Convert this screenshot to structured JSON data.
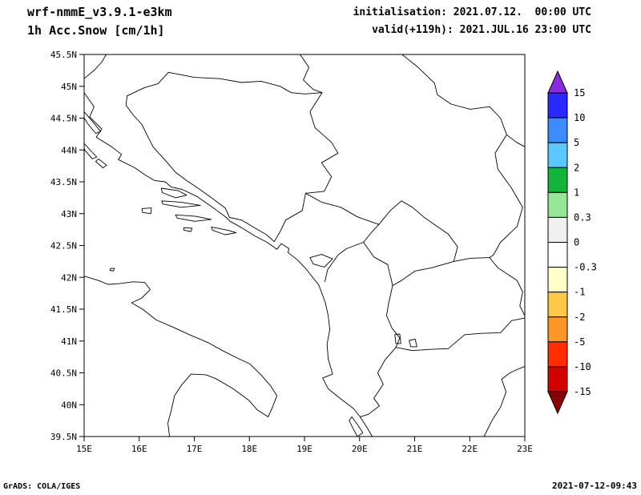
{
  "header": {
    "model_line": "wrf-nmmE_v3.9.1-e3km",
    "field_line": "1h Acc.Snow [cm/1h]",
    "init_line": "initialisation: 2021.07.12.  00:00 UTC",
    "valid_line": "valid(+119h): 2021.JUL.16 23:00 UTC"
  },
  "footer": {
    "grads_credit": "GrADS: COLA/IGES",
    "timestamp": "2021-07-12-09:43"
  },
  "chart_data": {
    "type": "map",
    "title": "1h Acc.Snow [cm/1h]",
    "model": "wrf-nmmE_v3.9.1-e3km",
    "initialisation": "2021.07.12. 00:00 UTC",
    "valid": "2021.JUL.16 23:00 UTC (+119h)",
    "lon_range": [
      15,
      23
    ],
    "lat_range": [
      39.5,
      45.5
    ],
    "x_ticks": [
      "15E",
      "16E",
      "17E",
      "18E",
      "19E",
      "20E",
      "21E",
      "22E",
      "23E"
    ],
    "y_ticks": [
      "45.5N",
      "45N",
      "44.5N",
      "44N",
      "43.5N",
      "43N",
      "42.5N",
      "42N",
      "41.5N",
      "41N",
      "40.5N",
      "40N",
      "39.5N"
    ],
    "grid": false,
    "field_note": "no shaded/contoured snow values visible inside map domain (field zero everywhere)",
    "colorbar": {
      "units": "cm/1h",
      "labels": [
        "15",
        "10",
        "5",
        "2",
        "1",
        "0.3",
        "0",
        "-0.3",
        "-1",
        "-2",
        "-5",
        "-10",
        "-15"
      ],
      "colors": [
        "#8a2be2",
        "#2828ff",
        "#3c8cff",
        "#5ac8ff",
        "#12b43c",
        "#96e696",
        "#f0f0f0",
        "#ffffff",
        "#ffffc8",
        "#ffc846",
        "#ff9628",
        "#ff2d00",
        "#d20000",
        "#8c0000"
      ]
    }
  },
  "map_features": {
    "coastlines": [
      [
        [
          15.0,
          44.9
        ],
        [
          15.18,
          44.68
        ],
        [
          15.1,
          44.52
        ],
        [
          15.32,
          44.33
        ],
        [
          15.22,
          44.2
        ],
        [
          15.5,
          44.05
        ],
        [
          15.68,
          43.93
        ],
        [
          15.62,
          43.85
        ],
        [
          15.92,
          43.72
        ],
        [
          16.12,
          43.6
        ],
        [
          16.28,
          43.52
        ],
        [
          16.47,
          43.5
        ],
        [
          16.58,
          43.42
        ],
        [
          16.78,
          43.38
        ],
        [
          17.05,
          43.27
        ],
        [
          17.38,
          43.07
        ],
        [
          17.58,
          42.94
        ],
        [
          17.65,
          42.88
        ],
        [
          17.82,
          42.8
        ],
        [
          18.1,
          42.65
        ],
        [
          18.32,
          42.55
        ],
        [
          18.5,
          42.44
        ],
        [
          18.58,
          42.53
        ],
        [
          18.72,
          42.45
        ],
        [
          18.7,
          42.39
        ],
        [
          18.88,
          42.27
        ],
        [
          19.03,
          42.13
        ],
        [
          19.12,
          42.03
        ],
        [
          19.26,
          41.88
        ],
        [
          19.38,
          41.6
        ],
        [
          19.43,
          41.4
        ],
        [
          19.46,
          41.18
        ],
        [
          19.41,
          40.95
        ],
        [
          19.43,
          40.72
        ],
        [
          19.51,
          40.48
        ],
        [
          19.33,
          40.42
        ],
        [
          19.43,
          40.25
        ],
        [
          19.66,
          40.09
        ],
        [
          19.89,
          39.94
        ],
        [
          20.01,
          39.81
        ],
        [
          20.13,
          39.65
        ],
        [
          20.23,
          39.5
        ]
      ],
      [
        [
          15.0,
          42.02
        ],
        [
          15.26,
          41.95
        ],
        [
          15.43,
          41.89
        ],
        [
          15.63,
          41.9
        ],
        [
          15.89,
          41.93
        ],
        [
          16.1,
          41.92
        ],
        [
          16.2,
          41.81
        ],
        [
          16.04,
          41.67
        ],
        [
          15.86,
          41.6
        ],
        [
          16.06,
          41.5
        ],
        [
          16.31,
          41.33
        ],
        [
          16.61,
          41.22
        ],
        [
          16.91,
          41.1
        ],
        [
          17.26,
          40.97
        ],
        [
          17.51,
          40.85
        ],
        [
          17.81,
          40.72
        ],
        [
          18.01,
          40.64
        ],
        [
          18.21,
          40.47
        ],
        [
          18.39,
          40.29
        ],
        [
          18.5,
          40.14
        ],
        [
          18.41,
          39.94
        ],
        [
          18.34,
          39.81
        ],
        [
          18.14,
          39.92
        ],
        [
          17.99,
          40.07
        ],
        [
          17.69,
          40.26
        ],
        [
          17.39,
          40.41
        ],
        [
          17.21,
          40.47
        ],
        [
          16.94,
          40.48
        ],
        [
          16.77,
          40.31
        ],
        [
          16.64,
          40.14
        ],
        [
          16.59,
          39.94
        ],
        [
          16.52,
          39.71
        ],
        [
          16.55,
          39.5
        ]
      ],
      [
        [
          22.26,
          39.5
        ],
        [
          22.41,
          39.76
        ],
        [
          22.56,
          39.96
        ],
        [
          22.66,
          40.2
        ],
        [
          22.58,
          40.4
        ],
        [
          22.73,
          40.5
        ],
        [
          22.91,
          40.57
        ],
        [
          23.0,
          40.6
        ]
      ]
    ],
    "borders": [
      [
        [
          15.0,
          45.12
        ],
        [
          15.18,
          45.25
        ],
        [
          15.32,
          45.38
        ],
        [
          15.4,
          45.5
        ]
      ],
      [
        [
          16.53,
          45.22
        ],
        [
          16.34,
          45.04
        ],
        [
          16.1,
          44.98
        ],
        [
          15.78,
          44.85
        ],
        [
          15.76,
          44.7
        ],
        [
          15.89,
          44.55
        ],
        [
          16.05,
          44.4
        ],
        [
          16.16,
          44.2
        ],
        [
          16.26,
          44.04
        ],
        [
          16.46,
          43.85
        ],
        [
          16.66,
          43.65
        ],
        [
          16.86,
          43.52
        ],
        [
          17.1,
          43.38
        ],
        [
          17.31,
          43.25
        ],
        [
          17.56,
          43.09
        ],
        [
          17.64,
          42.94
        ],
        [
          17.86,
          42.9
        ],
        [
          18.11,
          42.77
        ],
        [
          18.31,
          42.67
        ],
        [
          18.45,
          42.56
        ]
      ],
      [
        [
          16.53,
          45.22
        ],
        [
          17.0,
          45.14
        ],
        [
          17.46,
          45.12
        ],
        [
          17.86,
          45.06
        ],
        [
          18.21,
          45.08
        ],
        [
          18.56,
          45.0
        ],
        [
          18.76,
          44.9
        ],
        [
          19.01,
          44.88
        ],
        [
          19.32,
          44.9
        ]
      ],
      [
        [
          18.92,
          45.5
        ],
        [
          19.08,
          45.3
        ],
        [
          18.98,
          45.1
        ],
        [
          19.16,
          44.95
        ],
        [
          19.32,
          44.9
        ]
      ],
      [
        [
          19.32,
          44.9
        ],
        [
          19.1,
          44.6
        ],
        [
          19.19,
          44.35
        ],
        [
          19.49,
          44.12
        ],
        [
          19.61,
          43.95
        ],
        [
          19.31,
          43.8
        ],
        [
          19.49,
          43.58
        ],
        [
          19.36,
          43.35
        ],
        [
          19.02,
          43.32
        ]
      ],
      [
        [
          18.45,
          42.56
        ],
        [
          18.56,
          42.72
        ],
        [
          18.66,
          42.9
        ],
        [
          18.96,
          43.05
        ],
        [
          19.02,
          43.32
        ]
      ],
      [
        [
          19.02,
          43.32
        ],
        [
          19.31,
          43.18
        ],
        [
          19.66,
          43.1
        ],
        [
          19.96,
          42.95
        ],
        [
          20.35,
          42.83
        ]
      ],
      [
        [
          19.37,
          41.93
        ],
        [
          19.42,
          42.12
        ],
        [
          19.61,
          42.35
        ],
        [
          19.76,
          42.45
        ],
        [
          20.07,
          42.55
        ]
      ],
      [
        [
          20.07,
          42.55
        ],
        [
          20.21,
          42.7
        ],
        [
          20.35,
          42.83
        ]
      ],
      [
        [
          20.07,
          42.55
        ],
        [
          20.26,
          42.32
        ],
        [
          20.51,
          42.2
        ],
        [
          20.58,
          41.95
        ],
        [
          20.6,
          41.87
        ]
      ],
      [
        [
          20.35,
          42.83
        ],
        [
          20.56,
          43.05
        ],
        [
          20.76,
          43.2
        ],
        [
          20.96,
          43.1
        ],
        [
          21.16,
          42.95
        ],
        [
          21.41,
          42.8
        ],
        [
          21.61,
          42.68
        ],
        [
          21.78,
          42.48
        ]
      ],
      [
        [
          21.78,
          42.48
        ],
        [
          21.71,
          42.25
        ],
        [
          21.31,
          42.15
        ],
        [
          21.01,
          42.1
        ],
        [
          20.76,
          41.95
        ],
        [
          20.6,
          41.87
        ]
      ],
      [
        [
          21.71,
          42.25
        ],
        [
          22.01,
          42.3
        ],
        [
          22.36,
          42.31
        ]
      ],
      [
        [
          22.67,
          44.24
        ],
        [
          22.46,
          43.95
        ],
        [
          22.51,
          43.7
        ],
        [
          22.76,
          43.4
        ],
        [
          22.96,
          43.1
        ],
        [
          22.86,
          42.8
        ],
        [
          22.56,
          42.55
        ],
        [
          22.43,
          42.35
        ],
        [
          22.36,
          42.31
        ]
      ],
      [
        [
          20.77,
          45.5
        ],
        [
          21.06,
          45.3
        ],
        [
          21.36,
          45.05
        ],
        [
          21.41,
          44.87
        ],
        [
          21.66,
          44.72
        ],
        [
          22.01,
          44.64
        ],
        [
          22.36,
          44.68
        ],
        [
          22.56,
          44.5
        ],
        [
          22.67,
          44.24
        ],
        [
          22.85,
          44.12
        ],
        [
          23.0,
          44.05
        ]
      ],
      [
        [
          22.36,
          42.31
        ],
        [
          22.51,
          42.15
        ],
        [
          22.86,
          41.95
        ],
        [
          22.96,
          41.77
        ],
        [
          22.91,
          41.55
        ],
        [
          23.0,
          41.4
        ]
      ],
      [
        [
          20.6,
          41.87
        ],
        [
          20.53,
          41.6
        ],
        [
          20.49,
          41.4
        ],
        [
          20.59,
          41.2
        ],
        [
          20.73,
          41.05
        ],
        [
          20.66,
          40.9
        ]
      ],
      [
        [
          20.66,
          40.9
        ],
        [
          20.46,
          40.7
        ],
        [
          20.33,
          40.5
        ],
        [
          20.43,
          40.32
        ],
        [
          20.26,
          40.1
        ],
        [
          20.36,
          39.98
        ],
        [
          20.16,
          39.85
        ],
        [
          20.01,
          39.81
        ]
      ],
      [
        [
          20.66,
          40.9
        ],
        [
          20.96,
          40.85
        ],
        [
          21.31,
          40.87
        ],
        [
          21.61,
          40.88
        ],
        [
          21.91,
          41.1
        ],
        [
          22.21,
          41.12
        ],
        [
          22.56,
          41.13
        ],
        [
          22.76,
          41.32
        ],
        [
          23.0,
          41.36
        ]
      ]
    ],
    "islands": [
      [
        [
          15.0,
          44.6
        ],
        [
          15.16,
          44.44
        ],
        [
          15.3,
          44.29
        ],
        [
          15.21,
          44.26
        ],
        [
          15.06,
          44.42
        ],
        [
          14.96,
          44.56
        ]
      ],
      [
        [
          14.98,
          44.12
        ],
        [
          15.12,
          43.99
        ],
        [
          15.23,
          43.89
        ],
        [
          15.15,
          43.86
        ],
        [
          15.01,
          44.0
        ]
      ],
      [
        [
          15.26,
          43.86
        ],
        [
          15.41,
          43.76
        ],
        [
          15.34,
          43.72
        ],
        [
          15.21,
          43.82
        ]
      ],
      [
        [
          16.05,
          43.08
        ],
        [
          16.22,
          43.09
        ],
        [
          16.21,
          43.0
        ],
        [
          16.06,
          43.02
        ]
      ],
      [
        [
          16.4,
          43.4
        ],
        [
          16.71,
          43.36
        ],
        [
          16.86,
          43.29
        ],
        [
          16.66,
          43.25
        ],
        [
          16.42,
          43.33
        ]
      ],
      [
        [
          16.41,
          43.2
        ],
        [
          16.76,
          43.18
        ],
        [
          17.11,
          43.13
        ],
        [
          16.76,
          43.1
        ],
        [
          16.43,
          43.15
        ]
      ],
      [
        [
          16.66,
          42.98
        ],
        [
          17.01,
          42.96
        ],
        [
          17.31,
          42.91
        ],
        [
          17.01,
          42.88
        ],
        [
          16.69,
          42.93
        ]
      ],
      [
        [
          17.31,
          42.79
        ],
        [
          17.61,
          42.74
        ],
        [
          17.76,
          42.7
        ],
        [
          17.56,
          42.67
        ],
        [
          17.33,
          42.74
        ]
      ],
      [
        [
          16.81,
          42.78
        ],
        [
          16.96,
          42.77
        ],
        [
          16.94,
          42.72
        ],
        [
          16.81,
          42.74
        ]
      ],
      [
        [
          19.86,
          39.81
        ],
        [
          19.96,
          39.69
        ],
        [
          20.06,
          39.56
        ],
        [
          19.96,
          39.5
        ],
        [
          19.88,
          39.63
        ],
        [
          19.81,
          39.75
        ]
      ],
      [
        [
          15.48,
          42.14
        ],
        [
          15.55,
          42.14
        ],
        [
          15.53,
          42.1
        ],
        [
          15.47,
          42.11
        ]
      ]
    ],
    "lakes": [
      [
        [
          19.1,
          42.31
        ],
        [
          19.31,
          42.36
        ],
        [
          19.51,
          42.29
        ],
        [
          19.36,
          42.16
        ],
        [
          19.16,
          42.21
        ]
      ],
      [
        [
          20.64,
          41.1
        ],
        [
          20.73,
          41.11
        ],
        [
          20.75,
          40.96
        ],
        [
          20.66,
          40.96
        ]
      ],
      [
        [
          20.9,
          41.01
        ],
        [
          21.01,
          41.03
        ],
        [
          21.04,
          40.91
        ],
        [
          20.93,
          40.91
        ]
      ]
    ]
  }
}
